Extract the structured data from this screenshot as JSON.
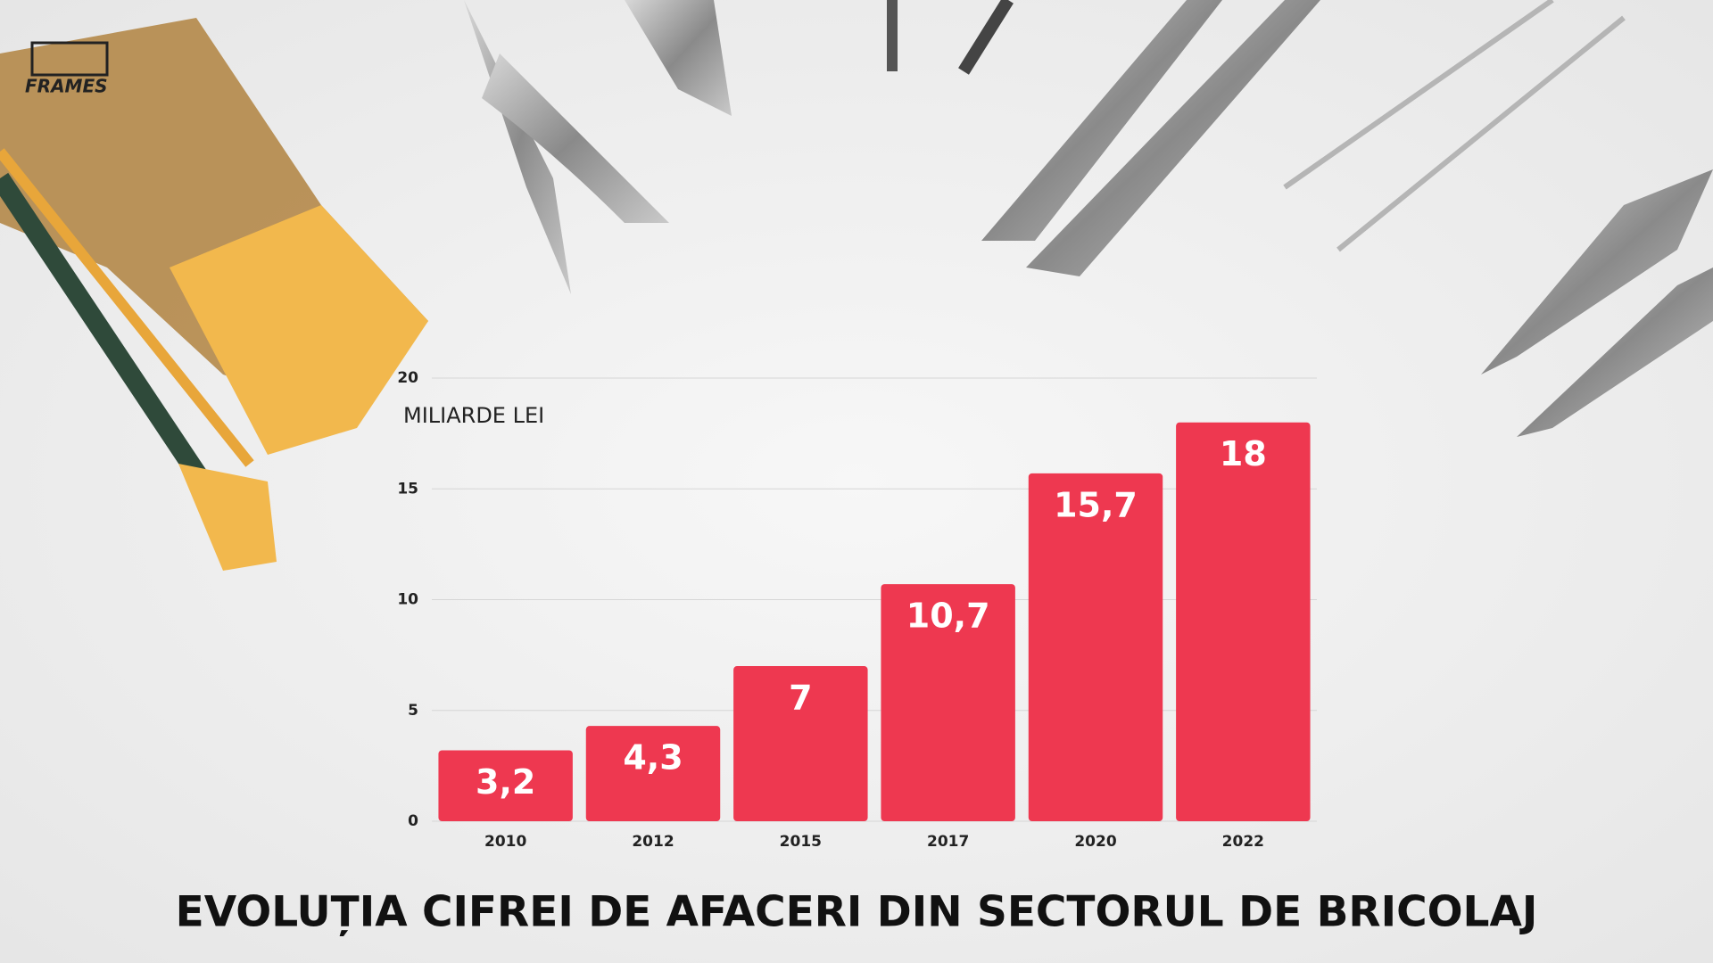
{
  "brand": "FRAMES",
  "chart_data": {
    "type": "bar",
    "title": "EVOLUȚIA CIFREI DE AFACERI DIN SECTORUL DE BRICOLAJ",
    "y_axis_label": "MILIARDE LEI",
    "categories": [
      "2010",
      "2012",
      "2015",
      "2017",
      "2020",
      "2022"
    ],
    "values": [
      3.2,
      4.3,
      7,
      10.7,
      15.7,
      18
    ],
    "value_labels": [
      "3,2",
      "4,3",
      "7",
      "10,7",
      "15,7",
      "18"
    ],
    "color": "#ee3850",
    "ylim": [
      0,
      20
    ],
    "yticks": [
      0,
      5,
      10,
      15,
      20
    ],
    "grid": true
  }
}
